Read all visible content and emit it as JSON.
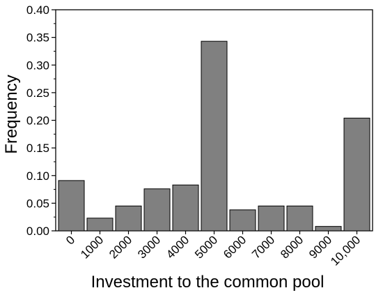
{
  "chart_data": {
    "type": "bar",
    "categories": [
      "0",
      "1000",
      "2000",
      "3000",
      "4000",
      "5000",
      "6000",
      "7000",
      "8000",
      "9000",
      "10,000"
    ],
    "values": [
      0.091,
      0.023,
      0.045,
      0.076,
      0.083,
      0.343,
      0.038,
      0.045,
      0.045,
      0.008,
      0.204
    ],
    "title": "",
    "xlabel": "Investment to the common pool",
    "ylabel": "Frequency",
    "ylim": [
      0,
      0.4
    ],
    "yticks": [
      "0.00",
      "0.05",
      "0.10",
      "0.15",
      "0.20",
      "0.25",
      "0.30",
      "0.35",
      "0.40"
    ],
    "grid": false,
    "legend": "none",
    "colors": {
      "bar_fill": "#808080",
      "bar_stroke": "#000000",
      "axis": "#000000"
    }
  }
}
